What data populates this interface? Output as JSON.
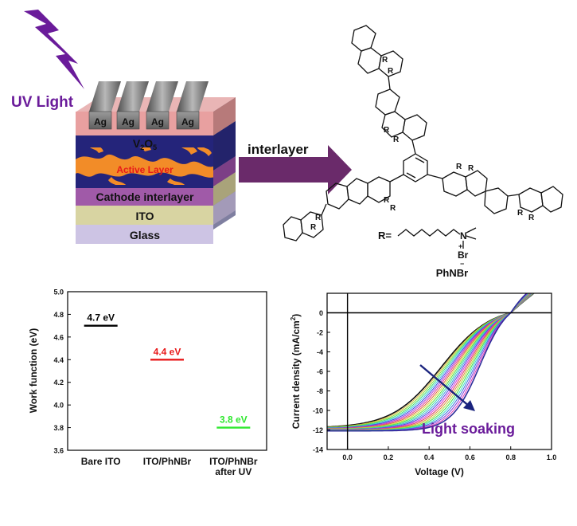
{
  "uv_label": "UV Light",
  "device": {
    "electrodes": [
      "Ag",
      "Ag",
      "Ag",
      "Ag"
    ],
    "layers": {
      "v2o5_main": "V",
      "v2o5_sub1": "2",
      "v2o5_mid": "O",
      "v2o5_sub2": "5",
      "active": "Active Layer",
      "cathode": "Cathode interlayer",
      "ito": "ITO",
      "glass": "Glass"
    }
  },
  "arrow_label": "interlayer",
  "molecule": {
    "substituent": "R",
    "side_chain_label": "R=",
    "nitrogen": "N",
    "plus": "+",
    "bromide": "Br",
    "minus": "−",
    "name": "PhNBr"
  },
  "colors": {
    "uv": "#6a1b9a",
    "arrow": "#6a2a6a",
    "active_layer": "#24247a",
    "active_blob": "#f28c28",
    "v2o5": "#e8a0a0",
    "cathode": "#a05aa8",
    "ito": "#d8d4a2",
    "glass": "#cdc4e4"
  },
  "chart_data": [
    {
      "type": "scatter",
      "title": "",
      "ylabel": "Work function (eV)",
      "xlabel": "",
      "categories": [
        "Bare ITO",
        "ITO/PhNBr",
        "ITO/PhNBr after UV"
      ],
      "category_lines": [
        [
          "Bare ITO"
        ],
        [
          "ITO/PhNBr"
        ],
        [
          "ITO/PhNBr",
          "after UV"
        ]
      ],
      "values": [
        4.7,
        4.4,
        3.8
      ],
      "value_labels": [
        "4.7 eV",
        "4.4 eV",
        "3.8 eV"
      ],
      "colors": [
        "#000000",
        "#e8191a",
        "#2ee82e"
      ],
      "ylim": [
        3.6,
        5.0
      ],
      "yticks": [
        "3.6",
        "3.8",
        "4.0",
        "4.2",
        "4.4",
        "4.6",
        "4.8",
        "5.0"
      ],
      "grid": false
    },
    {
      "type": "line",
      "title": "",
      "xlabel": "Voltage (V)",
      "ylabel": "Current density (mA/cm",
      "ylabel_sup": "2",
      "ylabel_end": ")",
      "xlim": [
        -0.1,
        1.0
      ],
      "ylim": [
        -14,
        2
      ],
      "xticks": [
        "0.0",
        "0.2",
        "0.4",
        "0.6",
        "0.8",
        "1.0"
      ],
      "yticks": [
        "-14",
        "-12",
        "-10",
        "-8",
        "-6",
        "-4",
        "-2",
        "0"
      ],
      "jsc_range": [
        -11.8,
        -12.1
      ],
      "voc": 0.8,
      "curve_count": 24,
      "annotation": "Light soaking",
      "grid": false
    }
  ]
}
